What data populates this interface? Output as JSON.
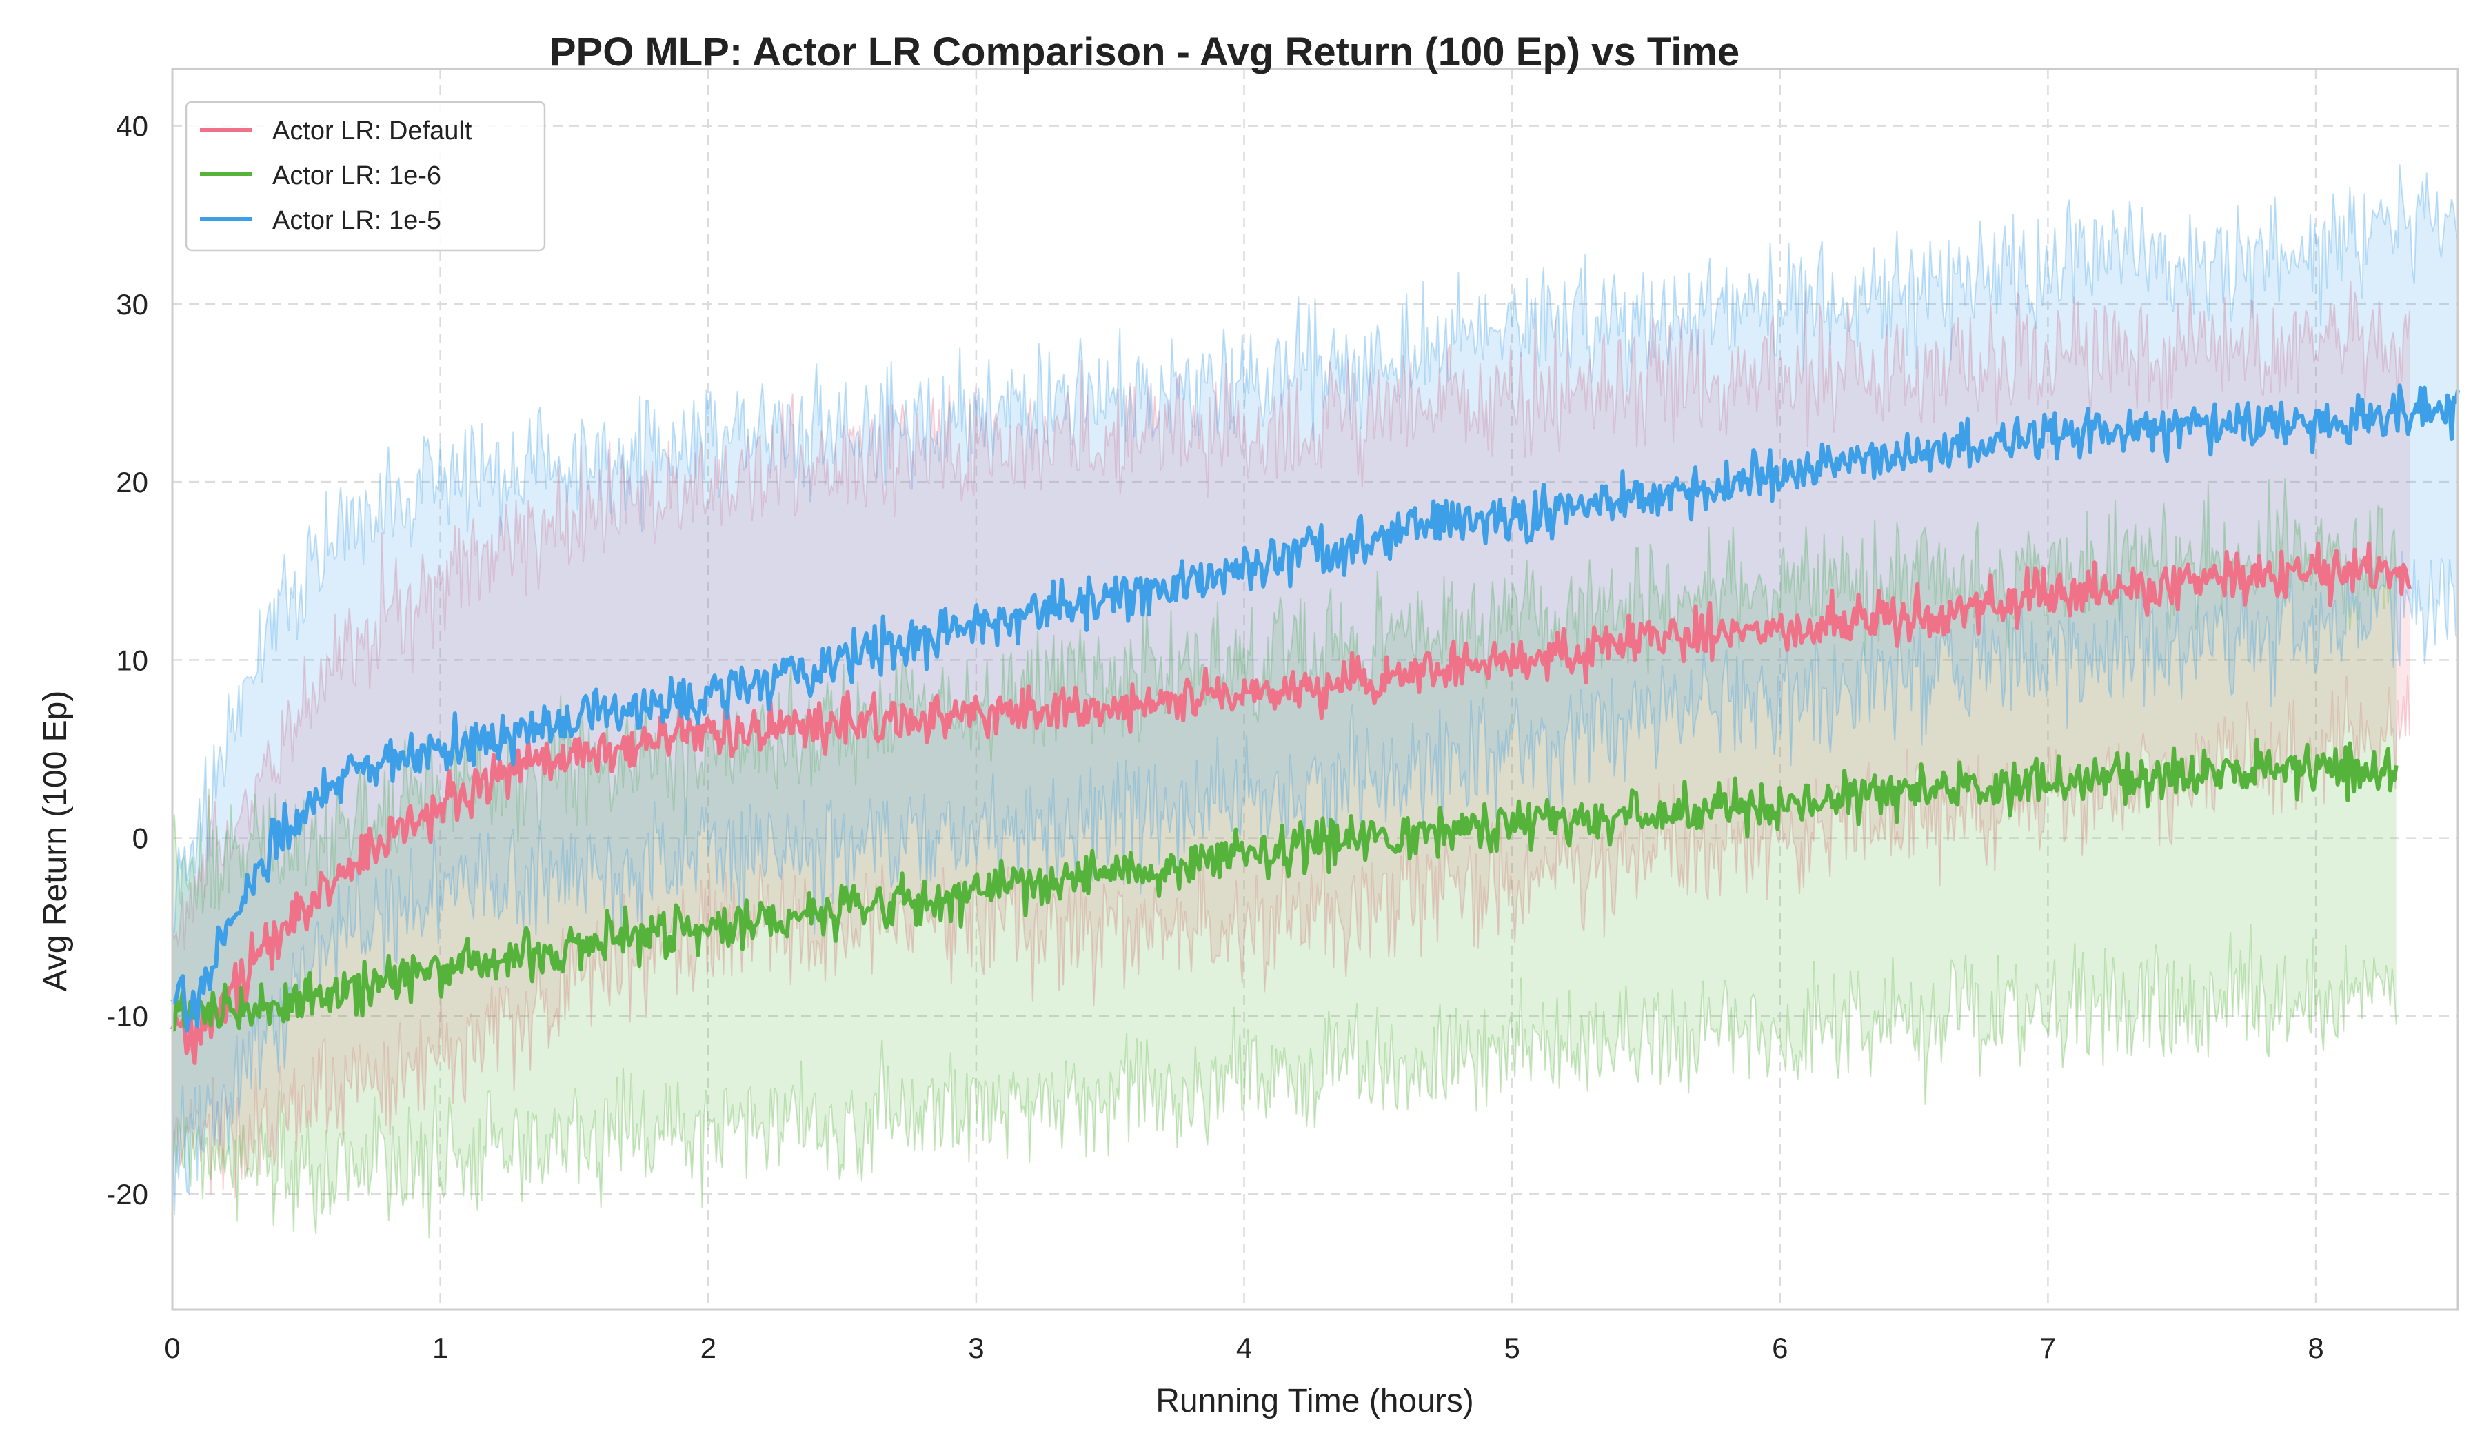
{
  "chart_data": {
    "type": "line",
    "title": "PPO MLP: Actor LR Comparison - Avg Return (100 Ep) vs Time",
    "xlabel": "Running Time (hours)",
    "ylabel": "Avg Return (100 Ep)",
    "xlim": [
      0,
      8.53
    ],
    "ylim": [
      -26.5,
      43.2
    ],
    "xticks": [
      0,
      1,
      2,
      3,
      4,
      5,
      6,
      7,
      8
    ],
    "yticks": [
      -20,
      -10,
      0,
      10,
      20,
      30,
      40
    ],
    "grid": true,
    "legend_position": "top-left",
    "series": [
      {
        "name": "Actor LR: Default",
        "color": "#f07289",
        "x_end": 8.35,
        "mean": {
          "x": [
            0,
            0.1,
            0.3,
            0.5,
            0.7,
            1.0,
            1.3,
            1.6,
            2.0,
            2.5,
            3.0,
            3.5,
            4.0,
            4.5,
            5.0,
            5.5,
            6.0,
            6.5,
            7.0,
            7.5,
            8.0,
            8.35
          ],
          "y": [
            -11,
            -11,
            -7,
            -4,
            -1,
            2,
            4,
            5,
            6,
            6.5,
            7,
            7.5,
            8,
            9,
            10,
            11,
            12,
            12.5,
            13.5,
            14,
            15,
            15
          ]
        },
        "band_upper": {
          "x": [
            0,
            0.3,
            0.6,
            1.0,
            1.5,
            2.0,
            3.0,
            4.0,
            5.0,
            6.0,
            7.0,
            8.0,
            8.35
          ],
          "y": [
            -5,
            3,
            10,
            15,
            18,
            20,
            22,
            23,
            25,
            26,
            27,
            28,
            28
          ]
        },
        "band_lower": {
          "x": [
            0,
            0.3,
            0.6,
            1.0,
            1.5,
            2.0,
            3.0,
            4.0,
            5.0,
            6.0,
            7.0,
            8.0,
            8.35
          ],
          "y": [
            -17,
            -17,
            -14,
            -12,
            -8,
            -5,
            -5,
            -5,
            -2,
            0,
            2,
            5,
            7
          ]
        }
      },
      {
        "name": "Actor LR: 1e-6",
        "color": "#55b33c",
        "x_end": 8.3,
        "mean": {
          "x": [
            0,
            0.1,
            0.3,
            0.5,
            1.0,
            1.5,
            2.0,
            2.5,
            3.0,
            3.5,
            4.0,
            4.5,
            5.0,
            5.5,
            6.0,
            6.5,
            7.0,
            7.5,
            8.0,
            8.3
          ],
          "y": [
            -10,
            -10,
            -9.5,
            -9,
            -7.5,
            -6,
            -5,
            -4,
            -3,
            -2,
            -1,
            0,
            0.8,
            1.2,
            2,
            2.6,
            3,
            3.5,
            4,
            4
          ]
        },
        "band_upper": {
          "x": [
            0,
            0.5,
            1.0,
            2.0,
            3.0,
            4.0,
            5.0,
            6.0,
            7.0,
            8.0,
            8.3
          ],
          "y": [
            -2,
            0,
            3,
            5,
            8,
            10,
            12,
            14,
            15,
            16,
            16
          ]
        },
        "band_lower": {
          "x": [
            0,
            0.5,
            1.0,
            2.0,
            3.0,
            4.0,
            5.0,
            6.0,
            7.0,
            8.0,
            8.3
          ],
          "y": [
            -18,
            -19,
            -18,
            -16,
            -15,
            -14,
            -12,
            -11,
            -10,
            -9,
            -9
          ]
        }
      },
      {
        "name": "Actor LR: 1e-5",
        "color": "#3c9fe8",
        "x_end": 8.53,
        "mean": {
          "x": [
            0,
            0.1,
            0.2,
            0.35,
            0.5,
            0.7,
            1.0,
            1.3,
            1.6,
            2.0,
            2.5,
            3.0,
            3.5,
            4.0,
            4.5,
            5.0,
            5.5,
            6.0,
            6.5,
            7.0,
            7.5,
            8.0,
            8.53
          ],
          "y": [
            -10,
            -9,
            -5,
            -1,
            2,
            4,
            5,
            6,
            7,
            8,
            10,
            12,
            13.5,
            15,
            17,
            18,
            19,
            20.5,
            21.5,
            22.5,
            23,
            23.5,
            24
          ]
        },
        "band_upper": {
          "x": [
            0,
            0.2,
            0.4,
            0.6,
            1.0,
            1.5,
            2.0,
            3.0,
            4.0,
            5.0,
            6.0,
            7.0,
            8.0,
            8.53
          ],
          "y": [
            -3,
            5,
            13,
            17,
            20,
            21,
            22,
            24,
            26,
            28,
            30,
            32,
            33,
            35
          ]
        },
        "band_lower": {
          "x": [
            0,
            0.2,
            0.4,
            0.6,
            1.0,
            1.5,
            2.0,
            3.0,
            4.0,
            5.0,
            6.0,
            7.0,
            8.0,
            8.53
          ],
          "y": [
            -18,
            -15,
            -10,
            -6,
            -3,
            -2,
            -1,
            0,
            2,
            5,
            8,
            10,
            12,
            13
          ]
        }
      }
    ]
  }
}
